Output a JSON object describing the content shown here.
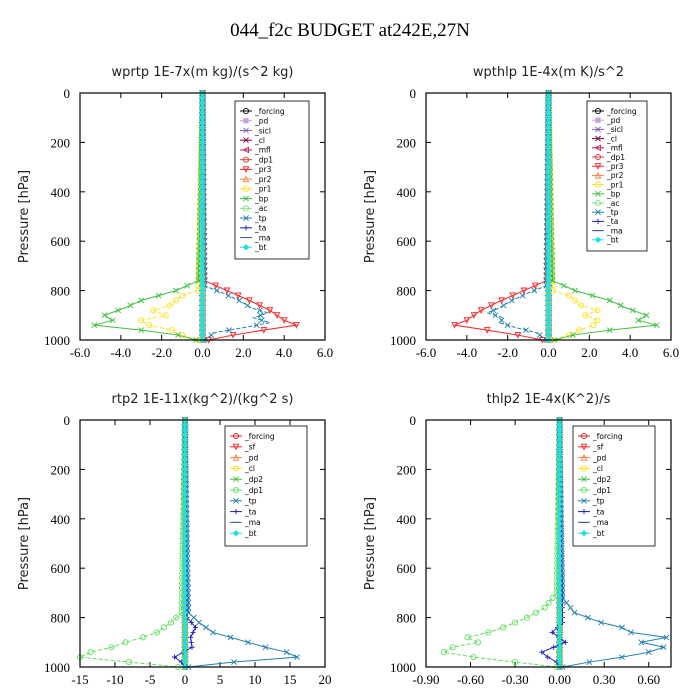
{
  "title": "044_f2c  BUDGET at242E,27N",
  "chart_data": [
    {
      "type": "line",
      "title": "wprtp   1E-7x(m kg)/(s^2 kg)",
      "ylabel": "Pressure [hPa]",
      "xlim": [
        -6,
        6
      ],
      "ylim": [
        1000,
        0
      ],
      "xticks": [
        "-6.0",
        "-4.0",
        "-2.0",
        "0.0",
        "2.0",
        "4.0",
        "6.0"
      ],
      "xtick_values": [
        -6,
        -4,
        -2,
        0,
        2,
        4,
        6
      ],
      "yticks": [
        "0",
        "200",
        "400",
        "600",
        "800",
        "1000"
      ],
      "ytick_values": [
        0,
        200,
        400,
        600,
        800,
        1000
      ],
      "legend": "top-right",
      "series": [
        {
          "name": "_forcing",
          "color": "#000000",
          "marker": "o",
          "pressure": [
            0,
            1000
          ],
          "values": [
            0,
            0
          ]
        },
        {
          "name": "_pd",
          "color": "#c8a0e0",
          "marker": "s",
          "pressure": [
            0,
            1000
          ],
          "values": [
            0,
            0
          ]
        },
        {
          "name": "_sicl",
          "color": "#8060c0",
          "marker": "x",
          "pressure": [
            0,
            1000
          ],
          "values": [
            0,
            0
          ]
        },
        {
          "name": "_cl",
          "color": "#800040",
          "marker": "x",
          "pressure": [
            0,
            1000
          ],
          "values": [
            0,
            0
          ]
        },
        {
          "name": "_mfl",
          "color": "#c02060",
          "marker": "<",
          "pressure": [
            0,
            1000
          ],
          "values": [
            0,
            0
          ]
        },
        {
          "name": "_dp1",
          "color": "#e04040",
          "marker": "o",
          "pressure": [
            0,
            1000
          ],
          "values": [
            0,
            0
          ]
        },
        {
          "name": "_pr3",
          "color": "#ff2020",
          "marker": "v",
          "pressure": [
            0,
            760,
            800,
            840,
            880,
            920,
            940,
            960,
            980,
            1000
          ],
          "values": [
            0,
            0.1,
            1.2,
            2.3,
            3.3,
            4.0,
            4.6,
            3.0,
            1.5,
            0.3
          ]
        },
        {
          "name": "_pr2",
          "color": "#ff8040",
          "marker": "^",
          "pressure": [
            0,
            1000
          ],
          "values": [
            0,
            0
          ]
        },
        {
          "name": "_pr1",
          "color": "#ffe020",
          "marker": "o",
          "pressure": [
            0,
            800,
            820,
            860,
            880,
            900,
            920,
            940,
            960,
            980,
            1000
          ],
          "values": [
            0,
            -0.2,
            -1.0,
            -1.6,
            -2.4,
            -1.8,
            -3.0,
            -2.6,
            -1.5,
            -1.0,
            -0.2
          ]
        },
        {
          "name": "_bp",
          "color": "#40c040",
          "marker": "x",
          "pressure": [
            0,
            760,
            800,
            840,
            870,
            900,
            920,
            940,
            960,
            980,
            1000
          ],
          "values": [
            0,
            -0.2,
            -1.3,
            -3.0,
            -3.8,
            -4.8,
            -4.4,
            -5.3,
            -3.0,
            -1.2,
            -0.3
          ]
        },
        {
          "name": "_ac",
          "color": "#80e080",
          "marker": "o",
          "pressure": [
            0,
            1000
          ],
          "values": [
            0,
            0
          ]
        },
        {
          "name": "_tp",
          "color": "#2080b0",
          "marker": "x",
          "pressure": [
            0,
            780,
            810,
            840,
            870,
            890,
            910,
            930,
            950,
            970,
            1000
          ],
          "values": [
            0,
            0.1,
            1.0,
            1.8,
            2.4,
            3.2,
            2.5,
            3.3,
            2.0,
            0.6,
            0.1
          ]
        },
        {
          "name": "_ta",
          "color": "#2020c0",
          "marker": "+",
          "pressure": [
            0,
            1000
          ],
          "values": [
            0,
            0
          ]
        },
        {
          "name": "_ma",
          "color": "#4060a0",
          "marker": "-",
          "pressure": [
            0,
            1000
          ],
          "values": [
            0,
            0
          ]
        },
        {
          "name": "_bt",
          "color": "#20e0e0",
          "marker": "D",
          "pressure": [
            0,
            1000
          ],
          "values": [
            0,
            0
          ]
        }
      ]
    },
    {
      "type": "line",
      "title": "wpthlp   1E-4x(m K)/s^2",
      "ylabel": "Pressure [hPa]",
      "xlim": [
        -6,
        6
      ],
      "ylim": [
        1000,
        0
      ],
      "xticks": [
        "-6.0",
        "-4.0",
        "-2.0",
        "0.0",
        "2.0",
        "4.0",
        "6.0"
      ],
      "xtick_values": [
        -6,
        -4,
        -2,
        0,
        2,
        4,
        6
      ],
      "yticks": [
        "0",
        "200",
        "400",
        "600",
        "800",
        "1000"
      ],
      "ytick_values": [
        0,
        200,
        400,
        600,
        800,
        1000
      ],
      "legend": "top-right",
      "series": [
        {
          "name": "_forcing",
          "color": "#000000",
          "marker": "o",
          "pressure": [
            0,
            1000
          ],
          "values": [
            0,
            0
          ]
        },
        {
          "name": "_pd",
          "color": "#c8a0e0",
          "marker": "s",
          "pressure": [
            0,
            1000
          ],
          "values": [
            0,
            0
          ]
        },
        {
          "name": "_sicl",
          "color": "#8060c0",
          "marker": "x",
          "pressure": [
            0,
            1000
          ],
          "values": [
            0,
            0
          ]
        },
        {
          "name": "_cl",
          "color": "#800040",
          "marker": "x",
          "pressure": [
            0,
            1000
          ],
          "values": [
            0,
            0
          ]
        },
        {
          "name": "_mfl",
          "color": "#c02060",
          "marker": "<",
          "pressure": [
            0,
            1000
          ],
          "values": [
            0,
            0
          ]
        },
        {
          "name": "_dp1",
          "color": "#e04040",
          "marker": "o",
          "pressure": [
            0,
            1000
          ],
          "values": [
            0,
            0
          ]
        },
        {
          "name": "_pr3",
          "color": "#ff2020",
          "marker": "v",
          "pressure": [
            0,
            760,
            800,
            840,
            880,
            920,
            940,
            960,
            980,
            1000
          ],
          "values": [
            0,
            -0.1,
            -1.2,
            -2.3,
            -3.3,
            -4.0,
            -4.6,
            -3.0,
            -1.5,
            -0.3
          ]
        },
        {
          "name": "_pr2",
          "color": "#ff8040",
          "marker": "^",
          "pressure": [
            0,
            1000
          ],
          "values": [
            0,
            0
          ]
        },
        {
          "name": "_pr1",
          "color": "#ffe020",
          "marker": "o",
          "pressure": [
            0,
            800,
            820,
            860,
            880,
            900,
            920,
            940,
            960,
            980,
            1000
          ],
          "values": [
            0,
            0.2,
            1.0,
            1.6,
            2.4,
            1.8,
            2.4,
            2.2,
            1.5,
            1.0,
            0.2
          ]
        },
        {
          "name": "_bp",
          "color": "#40c040",
          "marker": "x",
          "pressure": [
            0,
            760,
            800,
            840,
            870,
            900,
            920,
            940,
            960,
            980,
            1000
          ],
          "values": [
            0,
            0.2,
            1.3,
            3.0,
            3.8,
            4.8,
            4.4,
            5.3,
            3.0,
            1.2,
            0.3
          ]
        },
        {
          "name": "_ac",
          "color": "#80e080",
          "marker": "o",
          "pressure": [
            0,
            1000
          ],
          "values": [
            0,
            0
          ]
        },
        {
          "name": "_tp",
          "color": "#2080b0",
          "marker": "x",
          "pressure": [
            0,
            780,
            810,
            840,
            870,
            890,
            910,
            930,
            950,
            970,
            1000
          ],
          "values": [
            0,
            -0.1,
            -1.0,
            -1.8,
            -2.4,
            -3.0,
            -2.2,
            -2.4,
            -1.6,
            -0.6,
            -0.1
          ]
        },
        {
          "name": "_ta",
          "color": "#2020c0",
          "marker": "+",
          "pressure": [
            0,
            1000
          ],
          "values": [
            0,
            0
          ]
        },
        {
          "name": "_ma",
          "color": "#4060a0",
          "marker": "-",
          "pressure": [
            0,
            1000
          ],
          "values": [
            0,
            0
          ]
        },
        {
          "name": "_bt",
          "color": "#20e0e0",
          "marker": "D",
          "pressure": [
            0,
            1000
          ],
          "values": [
            0,
            0
          ]
        }
      ]
    },
    {
      "type": "line",
      "title": "rtp2   1E-11x(kg^2)/(kg^2 s)",
      "ylabel": "Pressure [hPa]",
      "xlim": [
        -15,
        20
      ],
      "ylim": [
        1000,
        0
      ],
      "xticks": [
        "-15",
        "-10",
        "-5",
        "0",
        "5",
        "10",
        "15",
        "20"
      ],
      "xtick_values": [
        -15,
        -10,
        -5,
        0,
        5,
        10,
        15,
        20
      ],
      "yticks": [
        "0",
        "200",
        "400",
        "600",
        "800",
        "1000"
      ],
      "ytick_values": [
        0,
        200,
        400,
        600,
        800,
        1000
      ],
      "legend": "top-right",
      "series": [
        {
          "name": "_forcing",
          "color": "#e02020",
          "marker": "o",
          "pressure": [
            0,
            1000
          ],
          "values": [
            0,
            0
          ]
        },
        {
          "name": "_sf",
          "color": "#ff2020",
          "marker": "v",
          "pressure": [
            0,
            1000
          ],
          "values": [
            0,
            0
          ]
        },
        {
          "name": "_pd",
          "color": "#ff8040",
          "marker": "^",
          "pressure": [
            0,
            1000
          ],
          "values": [
            0,
            0
          ]
        },
        {
          "name": "_cl",
          "color": "#ffe020",
          "marker": "o",
          "pressure": [
            0,
            1000
          ],
          "values": [
            0,
            0
          ]
        },
        {
          "name": "_dp2",
          "color": "#40c040",
          "marker": "x",
          "pressure": [
            0,
            1000
          ],
          "values": [
            0,
            0
          ]
        },
        {
          "name": "_dp1",
          "color": "#60e060",
          "marker": "o",
          "pressure": [
            0,
            780,
            820,
            860,
            880,
            900,
            920,
            940,
            960,
            980,
            1000
          ],
          "values": [
            0,
            -0.5,
            -2.0,
            -4.0,
            -6.0,
            -8.5,
            -10.5,
            -13.5,
            -15.0,
            -8.0,
            -1.0
          ]
        },
        {
          "name": "_tp",
          "color": "#2080b0",
          "marker": "x",
          "pressure": [
            0,
            780,
            820,
            860,
            880,
            900,
            920,
            940,
            960,
            980,
            1000
          ],
          "values": [
            0,
            0.5,
            2.0,
            4.0,
            6.5,
            9.0,
            11.5,
            14.5,
            16.0,
            7.0,
            0.5
          ]
        },
        {
          "name": "_ta",
          "color": "#2020c0",
          "marker": "+",
          "pressure": [
            0,
            800,
            840,
            880,
            920,
            960,
            980,
            1000
          ],
          "values": [
            0,
            0.3,
            1.5,
            0.8,
            1.0,
            -1.5,
            -0.5,
            0
          ]
        },
        {
          "name": "_ma",
          "color": "#4060a0",
          "marker": "-",
          "pressure": [
            0,
            1000
          ],
          "values": [
            0,
            0
          ]
        },
        {
          "name": "_bt",
          "color": "#20e0e0",
          "marker": "D",
          "pressure": [
            0,
            1000
          ],
          "values": [
            0,
            0
          ]
        }
      ]
    },
    {
      "type": "line",
      "title": "thlp2   1E-4x(K^2)/s",
      "ylabel": "Pressure [hPa]",
      "xlim": [
        -0.9,
        0.75
      ],
      "ylim": [
        1000,
        0
      ],
      "xticks": [
        "-0.90",
        "-0.60",
        "-0.30",
        "0.00",
        "0.30",
        "0.60"
      ],
      "xtick_values": [
        -0.9,
        -0.6,
        -0.3,
        0,
        0.3,
        0.6
      ],
      "yticks": [
        "0",
        "200",
        "400",
        "600",
        "800",
        "1000"
      ],
      "ytick_values": [
        0,
        200,
        400,
        600,
        800,
        1000
      ],
      "legend": "top-right",
      "series": [
        {
          "name": "_forcing",
          "color": "#e02020",
          "marker": "o",
          "pressure": [
            0,
            1000
          ],
          "values": [
            0,
            0
          ]
        },
        {
          "name": "_sf",
          "color": "#ff2020",
          "marker": "v",
          "pressure": [
            0,
            1000
          ],
          "values": [
            0,
            0
          ]
        },
        {
          "name": "_pd",
          "color": "#ff8040",
          "marker": "^",
          "pressure": [
            0,
            1000
          ],
          "values": [
            0,
            0
          ]
        },
        {
          "name": "_cl",
          "color": "#ffe020",
          "marker": "o",
          "pressure": [
            0,
            1000
          ],
          "values": [
            0,
            0
          ]
        },
        {
          "name": "_dp2",
          "color": "#40c040",
          "marker": "x",
          "pressure": [
            0,
            1000
          ],
          "values": [
            0,
            0
          ]
        },
        {
          "name": "_dp1",
          "color": "#60e060",
          "marker": "o",
          "pressure": [
            0,
            700,
            760,
            800,
            840,
            860,
            880,
            900,
            920,
            940,
            960,
            980,
            1000
          ],
          "values": [
            0,
            -0.02,
            -0.1,
            -0.22,
            -0.38,
            -0.48,
            -0.62,
            -0.55,
            -0.72,
            -0.78,
            -0.58,
            -0.3,
            -0.02
          ]
        },
        {
          "name": "_tp",
          "color": "#2080b0",
          "marker": "x",
          "pressure": [
            0,
            720,
            780,
            820,
            840,
            860,
            880,
            900,
            920,
            940,
            960,
            980,
            1000
          ],
          "values": [
            0,
            0.02,
            0.1,
            0.28,
            0.42,
            0.48,
            0.72,
            0.55,
            0.7,
            0.6,
            0.42,
            0.2,
            0.02
          ]
        },
        {
          "name": "_ta",
          "color": "#2020c0",
          "marker": "+",
          "pressure": [
            0,
            820,
            860,
            900,
            940,
            960,
            980,
            1000
          ],
          "values": [
            0,
            0.02,
            -0.05,
            0.04,
            -0.12,
            -0.08,
            -0.02,
            0
          ]
        },
        {
          "name": "_ma",
          "color": "#4060a0",
          "marker": "-",
          "pressure": [
            0,
            1000
          ],
          "values": [
            0,
            0
          ]
        },
        {
          "name": "_bt",
          "color": "#20e0e0",
          "marker": "D",
          "pressure": [
            0,
            1000
          ],
          "values": [
            0,
            0
          ]
        }
      ]
    }
  ]
}
